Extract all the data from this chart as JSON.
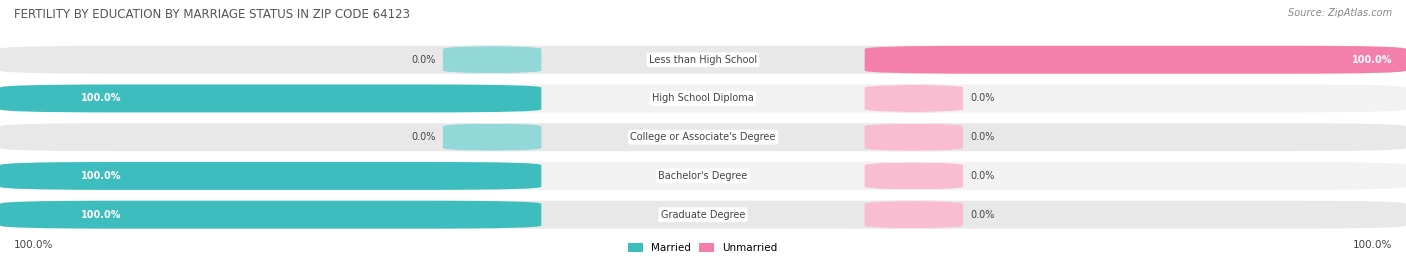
{
  "title": "FERTILITY BY EDUCATION BY MARRIAGE STATUS IN ZIP CODE 64123",
  "source": "Source: ZipAtlas.com",
  "categories": [
    "Less than High School",
    "High School Diploma",
    "College or Associate's Degree",
    "Bachelor's Degree",
    "Graduate Degree"
  ],
  "married_pct": [
    0.0,
    100.0,
    0.0,
    100.0,
    100.0
  ],
  "unmarried_pct": [
    100.0,
    0.0,
    0.0,
    0.0,
    0.0
  ],
  "married_color": "#3dbdbd",
  "unmarried_color": "#f47fab",
  "married_color_light": "#92d8d8",
  "unmarried_color_light": "#f9bcd0",
  "row_bg_dark": "#e8e8e8",
  "row_bg_light": "#f2f2f2",
  "text_color": "#444444",
  "title_color": "#555555",
  "source_color": "#888888",
  "legend_married": "Married",
  "legend_unmarried": "Unmarried",
  "bottom_left_label": "100.0%",
  "bottom_right_label": "100.0%",
  "figsize": [
    14.06,
    2.69
  ],
  "dpi": 100
}
